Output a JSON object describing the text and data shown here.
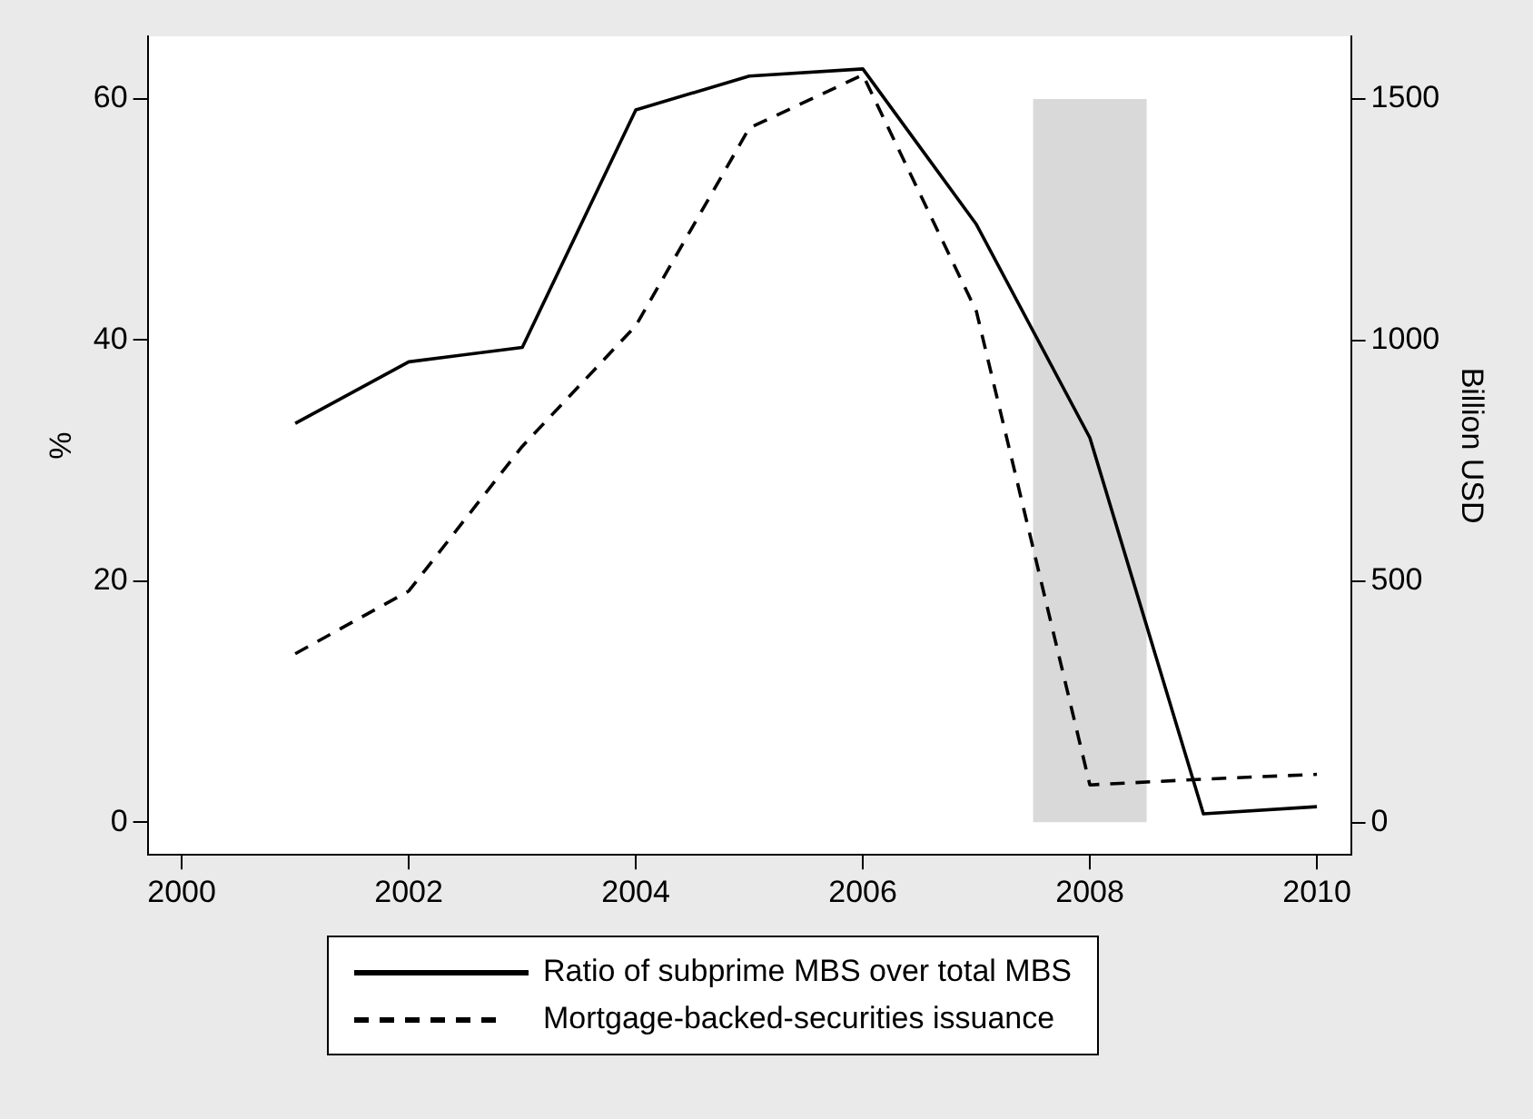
{
  "chart_data": {
    "type": "line",
    "ylabel": "%",
    "y2label": "Billion USD",
    "x": [
      2001,
      2002,
      2003,
      2004,
      2005,
      2006,
      2007,
      2008,
      2009,
      2010
    ],
    "series": [
      {
        "name": "Ratio of subprime MBS over total MBS",
        "color": "#000000",
        "line_style": "solid",
        "values": [
          33.1,
          38.2,
          39.4,
          59.1,
          61.9,
          62.5,
          49.6,
          31.9,
          0.7,
          1.3
        ]
      },
      {
        "name": "Mortgage-backed-securities issuance",
        "color": "#000000",
        "line_style": "dashed",
        "axis": "y2",
        "values": [
          350,
          480,
          780,
          1030,
          1440,
          1550,
          1060,
          78,
          90,
          100
        ]
      }
    ],
    "xlim": [
      1999.7,
      2010.3
    ],
    "xticks": [
      2000,
      2002,
      2004,
      2006,
      2008,
      2010
    ],
    "ylim": [
      -2.7,
      65.2
    ],
    "yticks": [
      0,
      20,
      40,
      60
    ],
    "y2lim": [
      -67,
      1630
    ],
    "y2ticks": [
      0,
      500,
      1000,
      1500
    ],
    "bands": [
      {
        "axis": "x",
        "from": 2007.5,
        "to": 2008.5,
        "color": "#d9d9d9"
      }
    ],
    "grid": false,
    "legend": "bottom",
    "marker": "none"
  }
}
